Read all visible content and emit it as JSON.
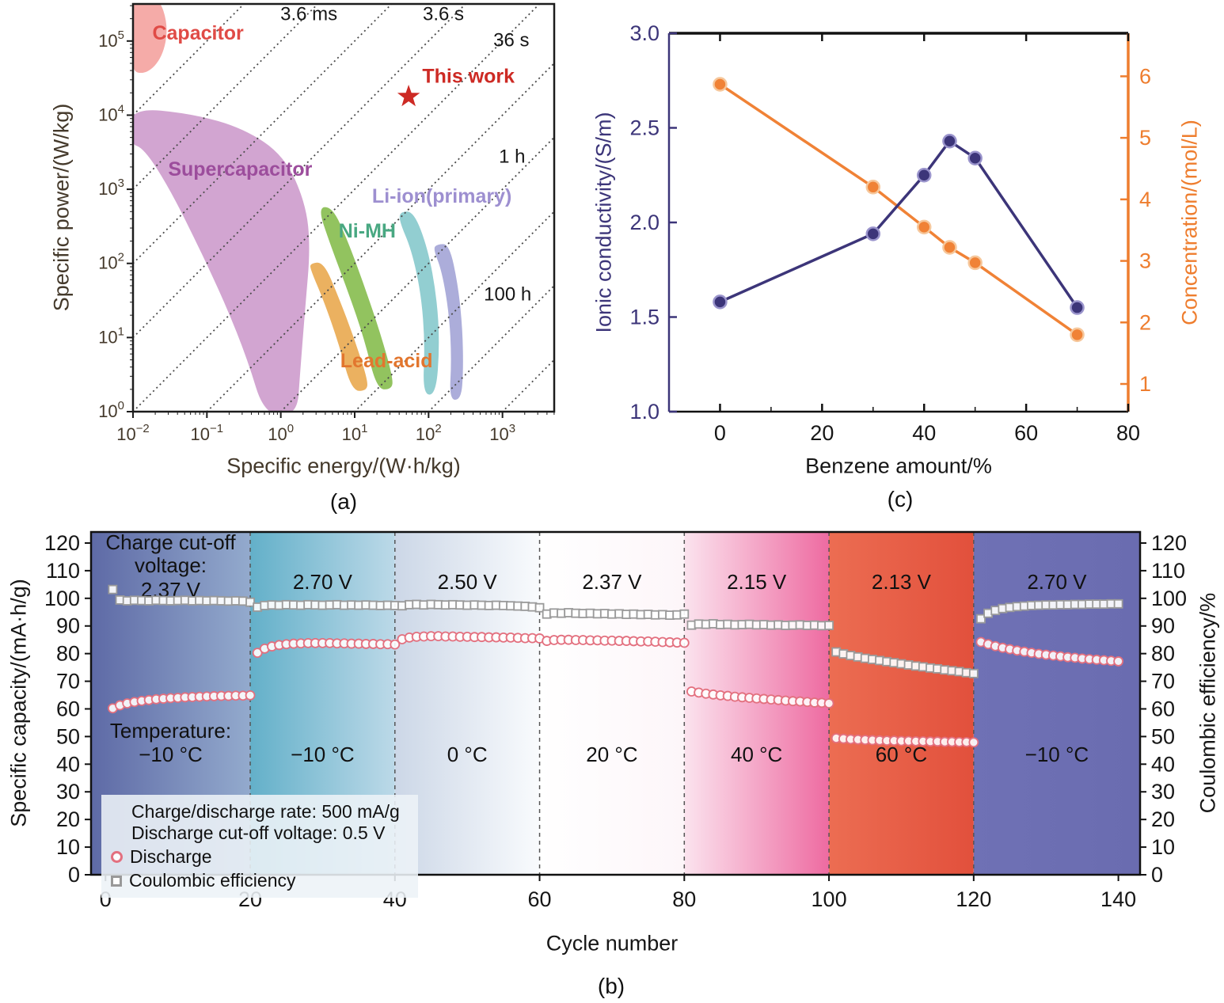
{
  "figure": {
    "caption_a": "(a)",
    "caption_b": "(b)",
    "caption_c": "(c)"
  },
  "chart_data": [
    {
      "id": "a",
      "type": "scatter",
      "xlabel": "Specific energy/(W·h/kg)",
      "ylabel": "Specific power/(W/kg)",
      "x_scale": "log",
      "y_scale": "log",
      "xlim_log10": [
        -2,
        3.7
      ],
      "ylim_log10": [
        0,
        5.5
      ],
      "x_tick_exponents": [
        -2,
        -1,
        0,
        1,
        2,
        3
      ],
      "y_tick_exponents": [
        0,
        1,
        2,
        3,
        4,
        5
      ],
      "axis_color": "#1c1c1c",
      "tick_label_color": "#44392b",
      "time_lines": {
        "slope_offsets_log10": [
          6,
          5,
          4,
          3,
          2,
          1,
          0,
          -1,
          -2,
          -3
        ],
        "color": "#4a4a4a"
      },
      "time_labels": [
        {
          "text": "3.6 ms",
          "x": 0.38,
          "y": 5.28
        },
        {
          "text": "3.6 s",
          "x": 2.2,
          "y": 5.28
        },
        {
          "text": "36 s",
          "x": 3.12,
          "y": 4.93
        },
        {
          "text": "1 h",
          "x": 3.13,
          "y": 3.36
        },
        {
          "text": "100 h",
          "x": 3.07,
          "y": 1.5
        }
      ],
      "regions": [
        {
          "label": "Supercapacitor",
          "fill": "#c78fc6",
          "opacity": 0.8,
          "label_color": "#9c4d9c",
          "label_log10": [
            -0.55,
            3.18
          ],
          "poly_log10": [
            [
              -2.05,
              4.1
            ],
            [
              -1.2,
              4.02
            ],
            [
              -0.5,
              3.82
            ],
            [
              0.05,
              3.45
            ],
            [
              0.34,
              2.8
            ],
            [
              0.4,
              2.2
            ],
            [
              0.33,
              1.4
            ],
            [
              0.26,
              0.5
            ],
            [
              0.22,
              -0.05
            ],
            [
              -0.22,
              -0.05
            ],
            [
              -0.45,
              0.7
            ],
            [
              -0.75,
              1.45
            ],
            [
              -1.1,
              2.2
            ],
            [
              -1.5,
              3.0
            ],
            [
              -1.85,
              3.55
            ],
            [
              -2.05,
              3.62
            ]
          ]
        },
        {
          "label": "Capacitor",
          "fill": "#f4a29e",
          "opacity": 0.9,
          "label_color": "#e04b46",
          "label_log10": [
            -1.12,
            5.02
          ],
          "poly_log10": [
            [
              -2.05,
              5.65
            ],
            [
              -1.66,
              5.62
            ],
            [
              -1.52,
              5.2
            ],
            [
              -1.6,
              4.78
            ],
            [
              -1.82,
              4.55
            ],
            [
              -2.05,
              4.6
            ]
          ]
        },
        {
          "label": "Lead-acid",
          "fill": "#e9a94f",
          "opacity": 0.9,
          "label_color": "#e2762e",
          "label_log10": [
            1.43,
            0.6
          ],
          "poly_log10": [
            [
              0.4,
              2.0
            ],
            [
              0.58,
              2.02
            ],
            [
              0.78,
              1.55
            ],
            [
              0.99,
              1.0
            ],
            [
              1.18,
              0.42
            ],
            [
              1.16,
              0.28
            ],
            [
              0.96,
              0.28
            ],
            [
              0.79,
              0.9
            ],
            [
              0.58,
              1.5
            ],
            [
              0.4,
              1.92
            ]
          ]
        },
        {
          "label": "Ni-MH",
          "fill": "#86bd4e",
          "opacity": 0.9,
          "label_color": "#49a882",
          "label_log10": [
            1.17,
            2.35
          ],
          "poly_log10": [
            [
              0.5,
              2.76
            ],
            [
              0.7,
              2.76
            ],
            [
              0.9,
              2.32
            ],
            [
              1.13,
              1.7
            ],
            [
              1.35,
              1.05
            ],
            [
              1.52,
              0.45
            ],
            [
              1.5,
              0.3
            ],
            [
              1.3,
              0.3
            ],
            [
              1.13,
              0.98
            ],
            [
              0.91,
              1.62
            ],
            [
              0.66,
              2.28
            ]
          ]
        },
        {
          "label": "Li-ion(primary)",
          "fill": "#7fc6c9",
          "opacity": 0.85,
          "label_color": "#9d8fd0",
          "label_log10": [
            2.18,
            2.82
          ],
          "poly_log10": [
            [
              1.62,
              2.7
            ],
            [
              1.8,
              2.7
            ],
            [
              1.99,
              2.2
            ],
            [
              2.11,
              1.55
            ],
            [
              2.15,
              0.9
            ],
            [
              2.1,
              0.23
            ],
            [
              1.92,
              0.23
            ],
            [
              1.95,
              0.92
            ],
            [
              1.9,
              1.58
            ],
            [
              1.77,
              2.18
            ],
            [
              1.6,
              2.58
            ]
          ]
        },
        {
          "label": "",
          "fill": "#9e9fd4",
          "opacity": 0.85,
          "label_color": "#9e9fd4",
          "label_log10": [
            0,
            0
          ],
          "poly_log10": [
            [
              2.12,
              2.26
            ],
            [
              2.28,
              2.26
            ],
            [
              2.4,
              1.7
            ],
            [
              2.46,
              1.1
            ],
            [
              2.47,
              0.55
            ],
            [
              2.44,
              0.16
            ],
            [
              2.28,
              0.16
            ],
            [
              2.31,
              0.7
            ],
            [
              2.28,
              1.3
            ],
            [
              2.18,
              1.9
            ],
            [
              2.06,
              2.2
            ]
          ]
        }
      ],
      "this_work": {
        "label": "This work",
        "star_log10": [
          1.73,
          4.25
        ],
        "label_log10": [
          2.54,
          4.44
        ],
        "color": "#cd2a24"
      }
    },
    {
      "id": "c",
      "type": "line",
      "xlabel": "Benzene amount/%",
      "ylabel_left": "Ionic conductivity/(S/m)",
      "ylabel_right": "Concentration/(mol/L)",
      "xlim": [
        -10,
        80
      ],
      "ylim_left": [
        1.0,
        3.0
      ],
      "ylim_right": [
        0.55,
        6.7
      ],
      "x_ticks": [
        0,
        20,
        40,
        60,
        80
      ],
      "x_minor_ticks": [
        10,
        30,
        50,
        70
      ],
      "y_ticks_left": [
        1.0,
        1.5,
        2.0,
        2.5,
        3.0
      ],
      "y_ticks_right": [
        1,
        2,
        3,
        4,
        5,
        6
      ],
      "left_color": "#3c3579",
      "right_color": "#ee7d2e",
      "grid": false,
      "series": [
        {
          "name": "Concentration",
          "axis": "right",
          "color": "#f08236",
          "ring": "#f6c79b",
          "x": [
            0,
            30,
            40,
            45,
            50,
            70
          ],
          "y": [
            5.87,
            4.2,
            3.55,
            3.22,
            2.97,
            1.8
          ]
        },
        {
          "name": "Ionic conductivity",
          "axis": "left",
          "color": "#3c3579",
          "ring": "#9a94cc",
          "x": [
            0,
            30,
            40,
            45,
            50,
            70
          ],
          "y": [
            1.58,
            1.94,
            2.25,
            2.43,
            2.34,
            1.55
          ]
        }
      ]
    },
    {
      "id": "b",
      "type": "scatter",
      "xlabel": "Cycle number",
      "ylabel_left": "Specific capacity/(mA·h/g)",
      "ylabel_right": "Coulombic efficiency/%",
      "xlim": [
        -2,
        143
      ],
      "ylim": [
        0,
        124
      ],
      "x_ticks": [
        0,
        20,
        40,
        60,
        80,
        100,
        120,
        140
      ],
      "y_ticks": [
        0,
        10,
        20,
        30,
        40,
        50,
        60,
        70,
        80,
        90,
        100,
        110,
        120
      ],
      "header": {
        "line1": "Charge cut-off",
        "line2": "voltage:",
        "temp_label": "Temperature:"
      },
      "segments": [
        {
          "x0": -2,
          "x1": 20,
          "color_left": "#5e6aa6",
          "color_right": "#93aacd",
          "voltage": "2.37 V",
          "temperature": "−10 °C"
        },
        {
          "x0": 20,
          "x1": 40,
          "color_left": "#63b0c9",
          "color_right": "#bcd9e8",
          "voltage": "2.70 V",
          "temperature": "−10 °C"
        },
        {
          "x0": 40,
          "x1": 60,
          "color_left": "#ccd7e7",
          "color_right": "#f9fbfd",
          "voltage": "2.50 V",
          "temperature": "0 °C"
        },
        {
          "x0": 60,
          "x1": 80,
          "color_left": "#ffffff",
          "color_right": "#fdf6f9",
          "voltage": "2.37 V",
          "temperature": "20 °C"
        },
        {
          "x0": 80,
          "x1": 100,
          "color_left": "#fbe3ee",
          "color_right": "#ee6ba1",
          "voltage": "2.15 V",
          "temperature": "40 °C"
        },
        {
          "x0": 100,
          "x1": 120,
          "color_left": "#ec6d52",
          "color_right": "#e2503c",
          "voltage": "2.13 V",
          "temperature": "60 °C"
        },
        {
          "x0": 120,
          "x1": 143,
          "color_left": "#6f71b5",
          "color_right": "#6a6cb0",
          "voltage": "2.70 V",
          "temperature": "−10 °C"
        }
      ],
      "legend": {
        "line1": "Charge/discharge rate: 500 mA/g",
        "line2": "Discharge cut-off voltage: 0.5 V"
      },
      "series": {
        "discharge": {
          "name": "Discharge",
          "marker": "circle",
          "color": "#e3707f",
          "values": [
            60.2,
            61.3,
            62.0,
            62.5,
            62.9,
            63.2,
            63.5,
            63.7,
            63.9,
            64.0,
            64.2,
            64.3,
            64.4,
            64.5,
            64.6,
            64.7,
            64.7,
            64.8,
            64.8,
            64.9,
            80.3,
            81.8,
            82.6,
            83.1,
            83.4,
            83.6,
            83.7,
            83.8,
            83.8,
            83.8,
            83.8,
            83.7,
            83.7,
            83.6,
            83.6,
            83.5,
            83.5,
            83.4,
            83.4,
            83.3,
            85.2,
            85.8,
            86.1,
            86.2,
            86.3,
            86.3,
            86.2,
            86.2,
            86.1,
            86.1,
            86.0,
            86.0,
            85.9,
            85.9,
            85.8,
            85.8,
            85.7,
            85.6,
            85.6,
            85.5,
            84.6,
            84.9,
            85.0,
            85.0,
            84.9,
            84.9,
            84.8,
            84.8,
            84.7,
            84.7,
            84.6,
            84.6,
            84.5,
            84.4,
            84.4,
            84.3,
            84.2,
            84.1,
            84.0,
            83.9,
            66.3,
            65.9,
            65.5,
            65.2,
            64.9,
            64.7,
            64.4,
            64.2,
            64.0,
            63.8,
            63.6,
            63.4,
            63.2,
            63.0,
            62.8,
            62.7,
            62.5,
            62.3,
            62.2,
            62.0,
            49.4,
            49.2,
            49.0,
            48.9,
            48.8,
            48.7,
            48.6,
            48.5,
            48.5,
            48.4,
            48.4,
            48.3,
            48.3,
            48.2,
            48.2,
            48.1,
            48.1,
            48.0,
            48.0,
            47.9,
            84.2,
            83.4,
            82.7,
            82.1,
            81.6,
            81.1,
            80.7,
            80.3,
            79.9,
            79.6,
            79.3,
            79.0,
            78.7,
            78.5,
            78.2,
            78.0,
            77.8,
            77.6,
            77.4,
            77.2
          ]
        },
        "efficiency": {
          "name": "Coulombic efficiency",
          "marker": "square",
          "color": "#9a9a9a",
          "values": [
            103.2,
            99.4,
            99.1,
            99.3,
            99.2,
            99.1,
            99.3,
            99.2,
            99.1,
            99.2,
            99.3,
            99.1,
            99.2,
            99.1,
            99.2,
            99.1,
            99.0,
            99.1,
            99.0,
            98.6,
            96.8,
            97.4,
            97.6,
            97.5,
            97.7,
            97.6,
            97.5,
            97.7,
            97.6,
            97.5,
            97.6,
            97.7,
            97.5,
            97.6,
            97.5,
            97.6,
            97.5,
            97.4,
            97.5,
            97.4,
            97.3,
            97.7,
            97.8,
            97.6,
            97.8,
            97.7,
            97.6,
            97.7,
            97.6,
            97.5,
            97.6,
            97.5,
            97.4,
            97.5,
            97.4,
            97.3,
            97.2,
            97.1,
            96.9,
            96.6,
            94.3,
            94.7,
            94.6,
            94.8,
            94.6,
            94.5,
            94.6,
            94.4,
            94.5,
            94.3,
            94.4,
            94.2,
            94.3,
            94.1,
            94.2,
            94.0,
            94.1,
            93.9,
            94.0,
            94.3,
            90.3,
            90.7,
            90.6,
            90.8,
            90.5,
            90.6,
            90.4,
            90.5,
            90.6,
            90.4,
            90.5,
            90.3,
            90.4,
            90.2,
            90.3,
            90.4,
            90.2,
            90.3,
            90.1,
            90.2,
            80.6,
            79.9,
            79.3,
            78.8,
            78.3,
            77.9,
            77.5,
            77.1,
            76.7,
            76.3,
            75.9,
            75.5,
            75.2,
            74.8,
            74.5,
            74.1,
            73.8,
            73.5,
            73.1,
            72.8,
            92.6,
            94.6,
            95.6,
            96.3,
            96.7,
            97.0,
            97.2,
            97.4,
            97.5,
            97.6,
            97.6,
            97.7,
            97.7,
            97.8,
            97.8,
            97.9,
            97.9,
            97.9,
            98.0,
            98.0
          ]
        }
      }
    }
  ]
}
